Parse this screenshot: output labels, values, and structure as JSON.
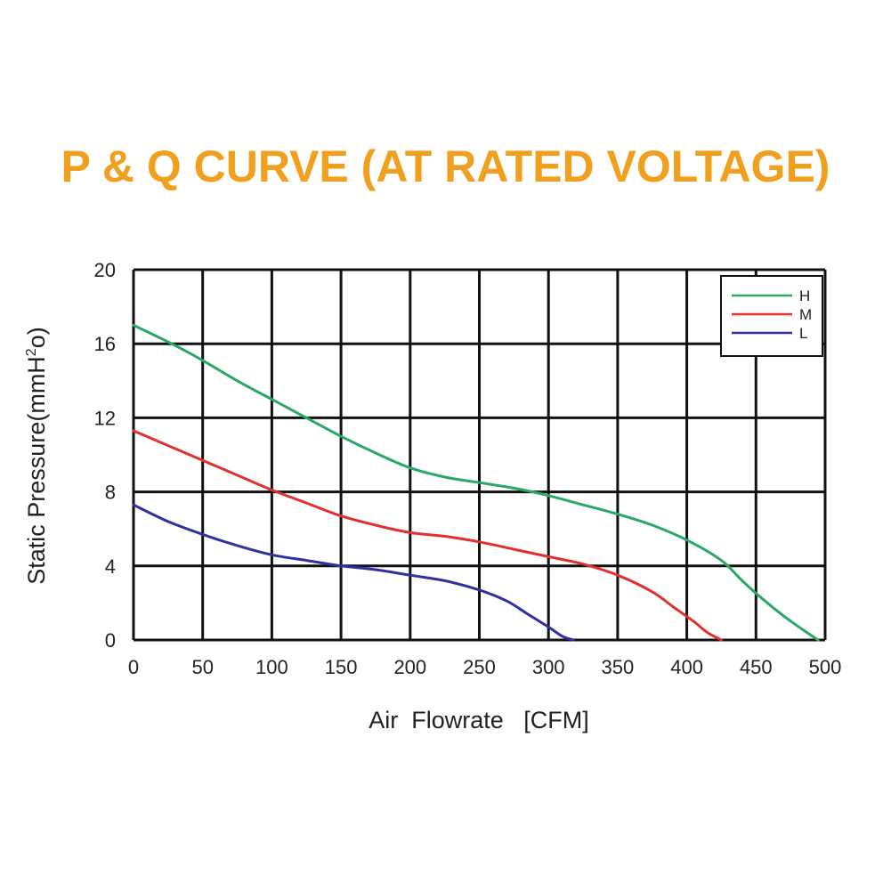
{
  "colors": {
    "title": "#f0a01e",
    "grid": "#111111"
  },
  "chart_data": {
    "type": "line",
    "title": "P & Q CURVE (AT RATED VOLTAGE)",
    "xlabel": "Air  Flowrate   [CFM]",
    "ylabel_main": "Static Pressure(mmH",
    "ylabel_sup": "2",
    "ylabel_end": "o)",
    "xlim": [
      0,
      500
    ],
    "ylim": [
      0,
      20
    ],
    "x_ticks": [
      "0",
      "50",
      "100",
      "150",
      "200",
      "250",
      "300",
      "350",
      "400",
      "450",
      "500"
    ],
    "y_ticks": [
      "0",
      "4",
      "8",
      "12",
      "16",
      "20"
    ],
    "x_tick_values": [
      0,
      50,
      100,
      150,
      200,
      250,
      300,
      350,
      400,
      450,
      500
    ],
    "y_tick_values": [
      0,
      4,
      8,
      12,
      16,
      20
    ],
    "grid": true,
    "legend_position": "top-right",
    "series": [
      {
        "name": "H",
        "color": "#2aa866",
        "x": [
          0,
          25,
          50,
          75,
          100,
          125,
          150,
          175,
          200,
          225,
          250,
          275,
          300,
          325,
          350,
          375,
          400,
          425,
          440,
          455,
          470,
          485,
          495
        ],
        "y": [
          17.0,
          16.1,
          15.1,
          14.0,
          13.0,
          12.0,
          11.0,
          10.1,
          9.3,
          8.8,
          8.5,
          8.2,
          7.8,
          7.3,
          6.8,
          6.2,
          5.4,
          4.3,
          3.2,
          2.2,
          1.3,
          0.5,
          0.0
        ]
      },
      {
        "name": "M",
        "color": "#e03030",
        "x": [
          0,
          25,
          50,
          75,
          100,
          125,
          150,
          175,
          200,
          225,
          250,
          275,
          300,
          325,
          350,
          375,
          390,
          405,
          415,
          425
        ],
        "y": [
          11.3,
          10.5,
          9.7,
          8.9,
          8.1,
          7.4,
          6.7,
          6.2,
          5.8,
          5.6,
          5.3,
          4.9,
          4.5,
          4.1,
          3.5,
          2.6,
          1.8,
          1.0,
          0.4,
          0.0
        ]
      },
      {
        "name": "L",
        "color": "#3030a0",
        "x": [
          0,
          25,
          50,
          75,
          100,
          125,
          150,
          175,
          200,
          225,
          250,
          270,
          285,
          300,
          310,
          318
        ],
        "y": [
          7.3,
          6.4,
          5.7,
          5.1,
          4.6,
          4.3,
          4.0,
          3.8,
          3.5,
          3.2,
          2.7,
          2.1,
          1.4,
          0.7,
          0.2,
          0.0
        ]
      }
    ]
  }
}
